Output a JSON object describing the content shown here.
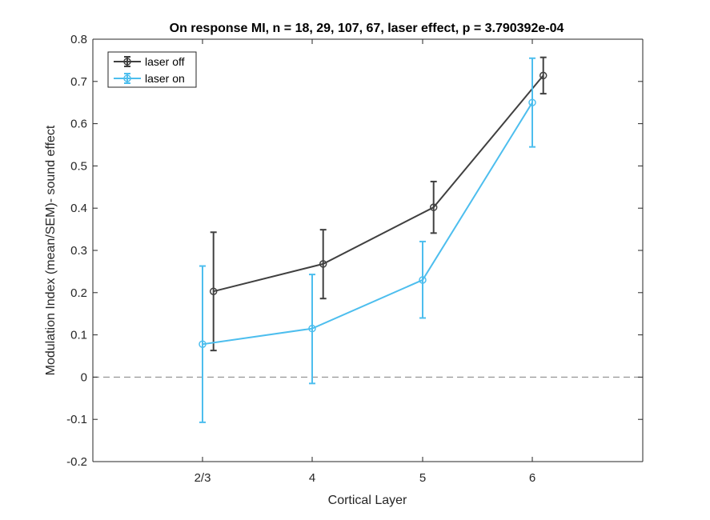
{
  "chart_data": {
    "type": "line",
    "title": "On response MI, n = 18, 29, 107, 67, laser effect, p = 3.790392e-04",
    "xlabel": "Cortical Layer",
    "ylabel": "Modulation Index (mean/SEM)- sound effect",
    "categories": [
      "2/3",
      "4",
      "5",
      "6"
    ],
    "ylim": [
      -0.2,
      0.8
    ],
    "yticks": [
      "-0.2",
      "-0.1",
      "0",
      "0.1",
      "0.2",
      "0.3",
      "0.4",
      "0.5",
      "0.6",
      "0.7",
      "0.8"
    ],
    "grid": false,
    "reference_line": {
      "y": 0,
      "style": "dashed"
    },
    "legend_position": "top-left",
    "series": [
      {
        "name": "laser off",
        "color": "#404040",
        "x_offset": 0.1,
        "values": [
          0.203,
          0.268,
          0.402,
          0.714
        ],
        "lower": [
          0.063,
          0.186,
          0.341,
          0.671
        ],
        "upper": [
          0.343,
          0.349,
          0.463,
          0.757
        ]
      },
      {
        "name": "laser on",
        "color": "#4DBEEE",
        "x_offset": 0.0,
        "values": [
          0.078,
          0.115,
          0.23,
          0.65
        ],
        "lower": [
          -0.107,
          -0.015,
          0.14,
          0.545
        ],
        "upper": [
          0.263,
          0.243,
          0.321,
          0.755
        ]
      }
    ]
  }
}
